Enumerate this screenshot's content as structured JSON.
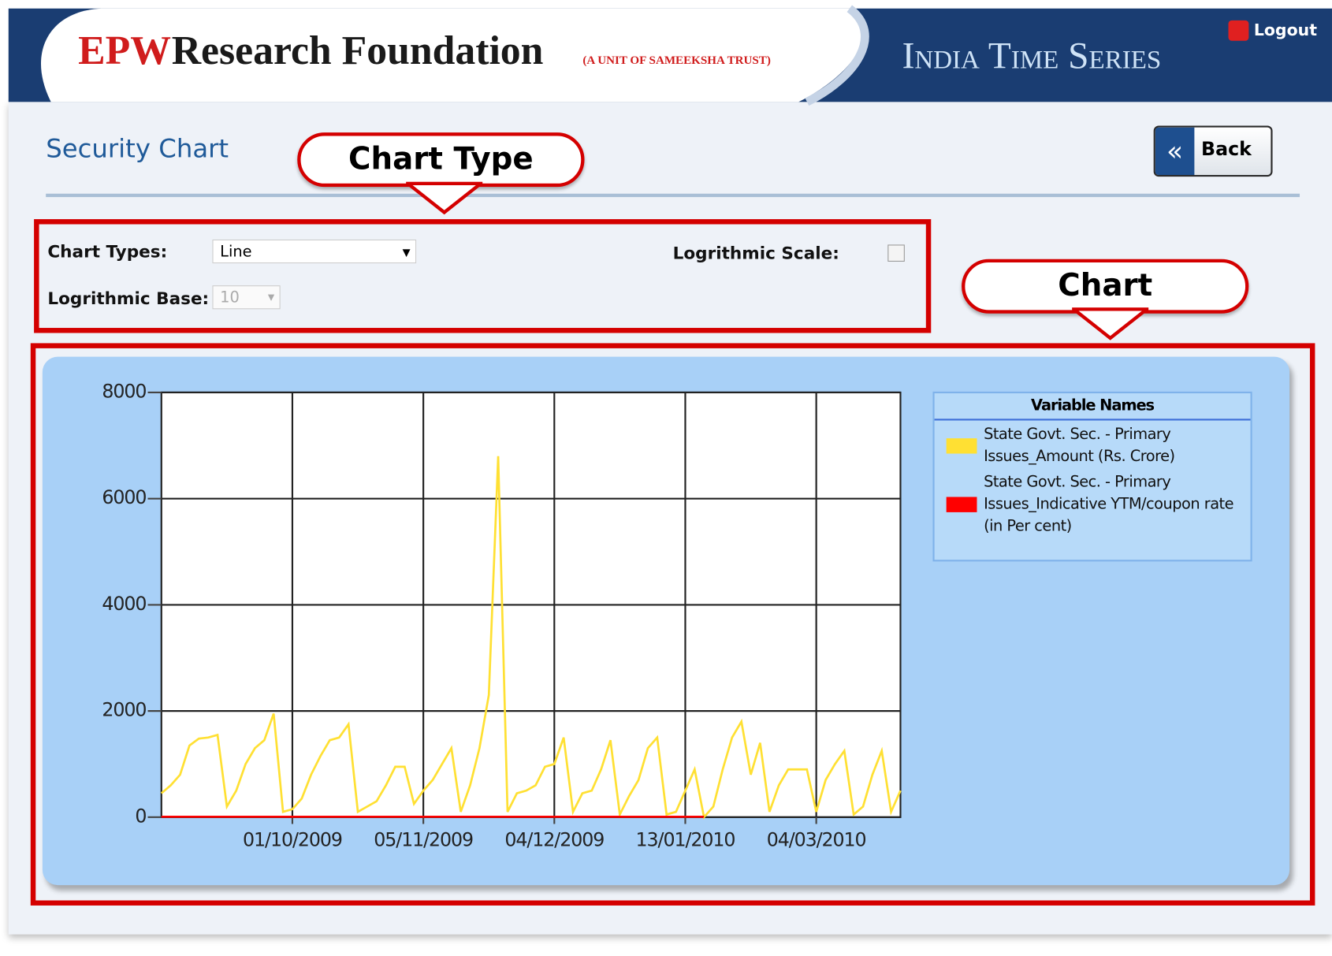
{
  "header": {
    "brand": "EPW",
    "name": "Research Foundation",
    "tagline": "(A UNIT OF SAMEEKSHA TRUST)",
    "product": "India Time Series",
    "logout": "Logout"
  },
  "page_title": "Security Chart",
  "back": "Back",
  "callouts": [
    "Chart Type",
    "Chart"
  ],
  "controls": {
    "chart_types_label": "Chart Types:",
    "chart_type": "Line",
    "log_scale_label": "Logrithmic Scale:",
    "log_base_label": "Logrithmic Base:",
    "log_base": "10"
  },
  "chart_data": {
    "type": "line",
    "legend_title": "Variable Names",
    "grid": true,
    "categories": [
      null,
      null,
      null,
      null,
      null,
      null,
      null,
      null,
      null,
      null,
      null,
      null,
      null,
      null,
      "01/10/2009",
      null,
      null,
      null,
      null,
      null,
      null,
      null,
      null,
      null,
      null,
      null,
      null,
      null,
      "05/11/2009",
      null,
      null,
      null,
      null,
      null,
      null,
      null,
      null,
      null,
      null,
      null,
      null,
      null,
      "04/12/2009",
      null,
      null,
      null,
      null,
      null,
      null,
      null,
      null,
      null,
      null,
      null,
      null,
      null,
      "13/01/2010",
      null,
      null,
      null,
      null,
      null,
      null,
      null,
      null,
      null,
      null,
      null,
      null,
      null,
      "04/03/2010",
      null,
      null,
      null,
      null,
      null,
      null,
      null,
      null,
      null
    ],
    "series": [
      {
        "name": "State Govt. Sec. - Primary Issues_Amount (Rs. Crore)",
        "color": "#ffe033",
        "values": [
          450,
          600,
          800,
          1350,
          1480,
          1500,
          1550,
          200,
          500,
          1000,
          1300,
          1450,
          1950,
          100,
          150,
          350,
          800,
          1150,
          1450,
          1500,
          1750,
          100,
          200,
          300,
          600,
          950,
          950,
          250,
          500,
          700,
          1000,
          1300,
          100,
          600,
          1300,
          2300,
          6800,
          100,
          450,
          500,
          600,
          950,
          1000,
          1500,
          100,
          450,
          500,
          900,
          1450,
          50,
          400,
          700,
          1300,
          1500,
          50,
          100,
          500,
          900,
          0,
          200,
          900,
          1500,
          1800,
          800,
          1400,
          100,
          600,
          900,
          900,
          900,
          100,
          700,
          1000,
          1250,
          50,
          200,
          800,
          1250,
          100,
          500
        ]
      },
      {
        "name": "State Govt. Sec. - Primary Issues_Indicative YTM/coupon rate (in Per cent)",
        "color": "#ff0000",
        "values": [
          8,
          8,
          8,
          8,
          8,
          8,
          8,
          8,
          8,
          8,
          8,
          8,
          8,
          8,
          8,
          8,
          8,
          8,
          8,
          8,
          8,
          8,
          8,
          8,
          8,
          8,
          8,
          8,
          8,
          8,
          8,
          8,
          8,
          8,
          8,
          8,
          8,
          8,
          8,
          8,
          8,
          8,
          8,
          8,
          8,
          8,
          8,
          8,
          8,
          8,
          8,
          8,
          8,
          8,
          8,
          8,
          8,
          8,
          8,
          null,
          null,
          null,
          null,
          null,
          null,
          null,
          null,
          null,
          null,
          null,
          null,
          null,
          null,
          null,
          null,
          null,
          null,
          null,
          null,
          null
        ]
      }
    ],
    "ylim": [
      0,
      8000
    ],
    "yticks": [
      0,
      2000,
      4000,
      6000,
      8000
    ]
  }
}
